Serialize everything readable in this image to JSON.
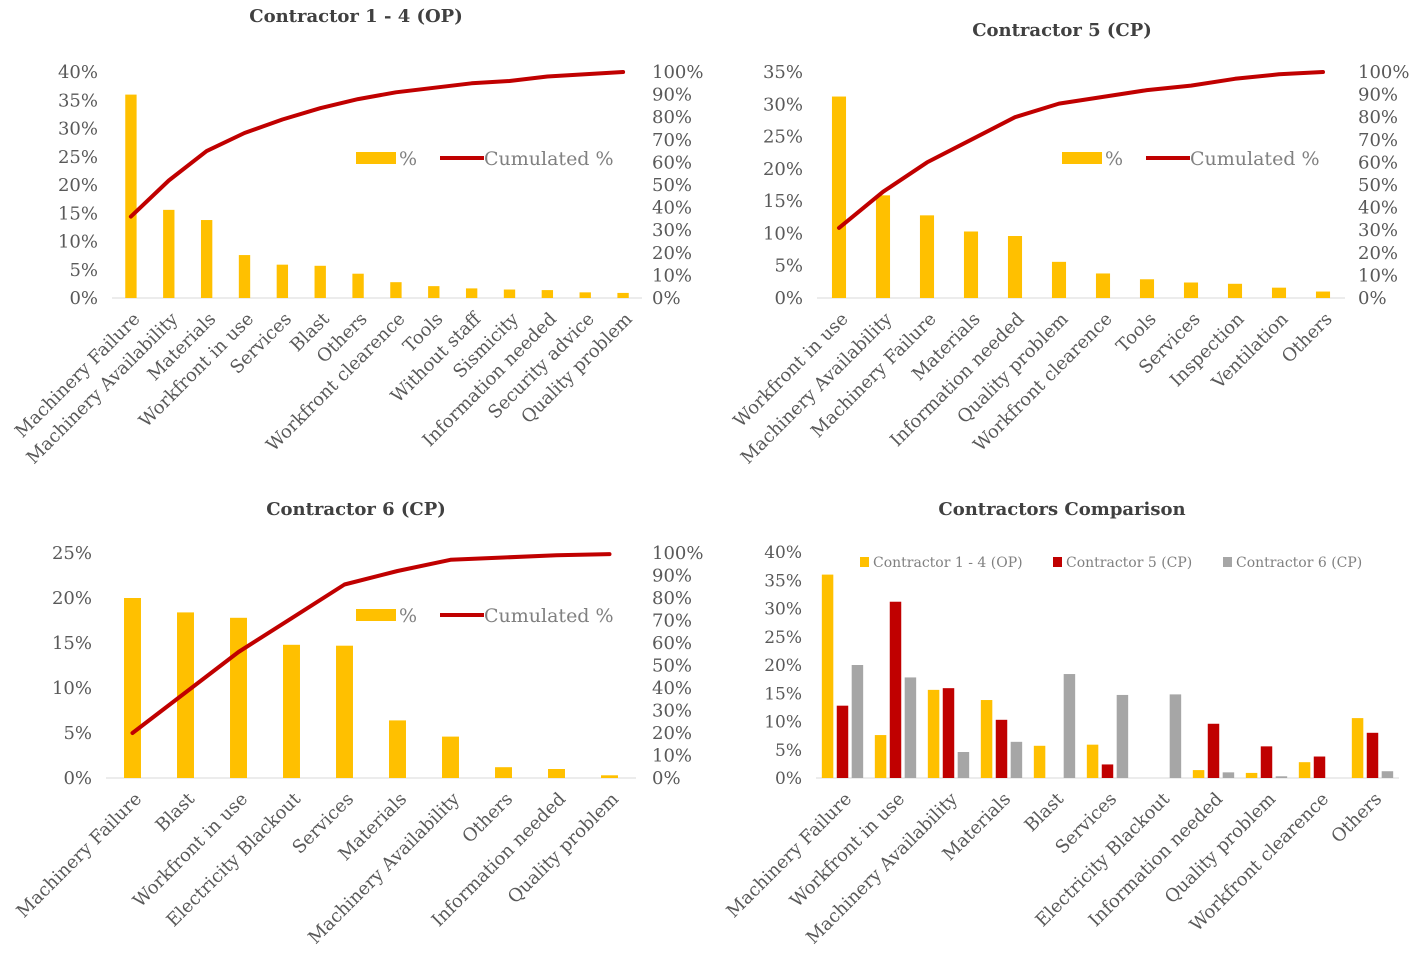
{
  "chart_data": [
    {
      "type": "bar",
      "title": "Contractor 1 - 4 (OP)",
      "categories": [
        "Machinery Failure",
        "Machinery Availability",
        "Materials",
        "Workfront in use",
        "Services",
        "Blast",
        "Others",
        "Workfront clearence",
        "Tools",
        "Without staff",
        "Sismicity",
        "Information needed",
        "Security advice",
        "Quality problem"
      ],
      "series": [
        {
          "name": "%",
          "kind": "bar",
          "axis": "left",
          "values": [
            36.0,
            15.6,
            13.8,
            7.6,
            5.9,
            5.7,
            4.3,
            2.8,
            2.1,
            1.7,
            1.5,
            1.4,
            1.0,
            0.9
          ]
        },
        {
          "name": "Cumulated %",
          "kind": "line",
          "axis": "right",
          "values": [
            36,
            52,
            65,
            73,
            79,
            84,
            88,
            91,
            93,
            95,
            96,
            98,
            99,
            100
          ]
        }
      ],
      "ylim": [
        0,
        40
      ],
      "yticks": [
        0,
        5,
        10,
        15,
        20,
        25,
        30,
        35,
        40
      ],
      "y2lim": [
        0,
        100
      ],
      "y2ticks": [
        0,
        10,
        20,
        30,
        40,
        50,
        60,
        70,
        80,
        90,
        100
      ],
      "legend": "right",
      "grid": false
    },
    {
      "type": "bar",
      "title": "Contractor 5 (CP)",
      "categories": [
        "Workfront in use",
        "Machinery Availability",
        "Machinery Failure",
        "Materials",
        "Information needed",
        "Quality problem",
        "Workfront clearence",
        "Tools",
        "Services",
        "Inspection",
        "Ventilation",
        "Others"
      ],
      "series": [
        {
          "name": "%",
          "kind": "bar",
          "axis": "left",
          "values": [
            31.2,
            15.9,
            12.8,
            10.3,
            9.6,
            5.6,
            3.8,
            2.9,
            2.4,
            2.2,
            1.6,
            1.0
          ]
        },
        {
          "name": "Cumulated %",
          "kind": "line",
          "axis": "right",
          "values": [
            31,
            47,
            60,
            70,
            80,
            86,
            89,
            92,
            94,
            97,
            99,
            100
          ]
        }
      ],
      "ylim": [
        0,
        35
      ],
      "yticks": [
        0,
        5,
        10,
        15,
        20,
        25,
        30,
        35
      ],
      "y2lim": [
        0,
        100
      ],
      "y2ticks": [
        0,
        10,
        20,
        30,
        40,
        50,
        60,
        70,
        80,
        90,
        100
      ],
      "legend": "right",
      "grid": false
    },
    {
      "type": "bar",
      "title": "Contractor 6 (CP)",
      "categories": [
        "Machinery Failure",
        "Blast",
        "Workfront in use",
        "Electricity Blackout",
        "Services",
        "Materials",
        "Machinery Availability",
        "Others",
        "Information needed",
        "Quality problem"
      ],
      "series": [
        {
          "name": "%",
          "kind": "bar",
          "axis": "left",
          "values": [
            20.0,
            18.4,
            17.8,
            14.8,
            14.7,
            6.4,
            4.6,
            1.2,
            1.0,
            0.3
          ]
        },
        {
          "name": "Cumulated %",
          "kind": "line",
          "axis": "right",
          "values": [
            20,
            38,
            56,
            71,
            86,
            92,
            97,
            98,
            99,
            99.5
          ]
        }
      ],
      "ylim": [
        0,
        25
      ],
      "yticks": [
        0,
        5,
        10,
        15,
        20,
        25
      ],
      "y2lim": [
        0,
        100
      ],
      "y2ticks": [
        0,
        10,
        20,
        30,
        40,
        50,
        60,
        70,
        80,
        90,
        100
      ],
      "legend": "right",
      "grid": false
    },
    {
      "type": "bar",
      "title": "Contractors Comparison",
      "categories": [
        "Machinery Failure",
        "Workfront in use",
        "Machinery Availability",
        "Materials",
        "Blast",
        "Services",
        "Electricity Blackout",
        "Information needed",
        "Quality problem",
        "Workfront clearence",
        "Others"
      ],
      "series": [
        {
          "name": "Contractor 1 - 4 (OP)",
          "kind": "bar",
          "axis": "left",
          "values": [
            36.0,
            7.6,
            15.6,
            13.8,
            5.7,
            5.9,
            0,
            1.4,
            0.9,
            2.8,
            10.6
          ]
        },
        {
          "name": "Contractor 5 (CP)",
          "kind": "bar",
          "axis": "left",
          "values": [
            12.8,
            31.2,
            15.9,
            10.3,
            0,
            2.4,
            0,
            9.6,
            5.6,
            3.8,
            8.0
          ]
        },
        {
          "name": "Contractor 6 (CP)",
          "kind": "bar",
          "axis": "left",
          "values": [
            20.0,
            17.8,
            4.6,
            6.4,
            18.4,
            14.7,
            14.8,
            1.0,
            0.3,
            0,
            1.2
          ]
        }
      ],
      "ylim": [
        0,
        40
      ],
      "yticks": [
        0,
        5,
        10,
        15,
        20,
        25,
        30,
        35,
        40
      ],
      "legend": "top",
      "grid": false
    }
  ],
  "colors": {
    "bar": "#FFC000",
    "line": "#C00000",
    "series": [
      "#FFC000",
      "#C00000",
      "#A6A6A6"
    ],
    "axis_text": "#595959",
    "legend_text": "#808080"
  }
}
